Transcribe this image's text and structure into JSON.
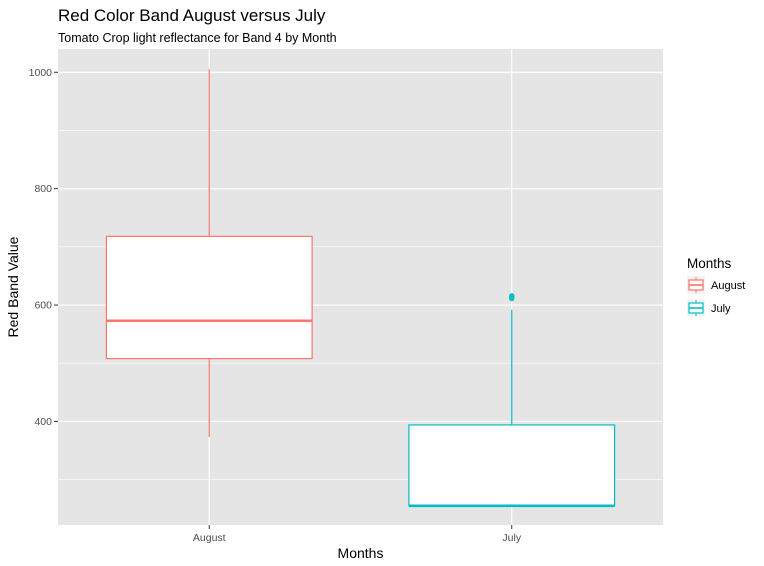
{
  "chart_data": {
    "type": "boxplot",
    "title": "Red Color Band August versus July",
    "subtitle": "Tomato Crop light reflectance for Band 4 by Month",
    "xlabel": "Months",
    "ylabel": "Red Band Value",
    "categories": [
      "August",
      "July"
    ],
    "ylim": [
      222,
      1040
    ],
    "y_ticks": [
      400,
      600,
      800,
      1000
    ],
    "grid": true,
    "legend": {
      "title": "Months",
      "placement": "right",
      "entries": [
        "August",
        "July"
      ]
    },
    "series": [
      {
        "category": "August",
        "color": "#F8766D",
        "whisker_low": 373,
        "q1": 508,
        "median": 573,
        "q3": 718,
        "whisker_high": 1005,
        "outliers": []
      },
      {
        "category": "July",
        "color": "#00BFC4",
        "whisker_low": 255,
        "q1": 255,
        "median": 255,
        "q3": 394,
        "whisker_high": 592,
        "outliers": [
          611,
          613,
          615,
          616
        ]
      }
    ],
    "panel_background": "#E5E5E5",
    "grid_color": "#FFFFFF"
  }
}
